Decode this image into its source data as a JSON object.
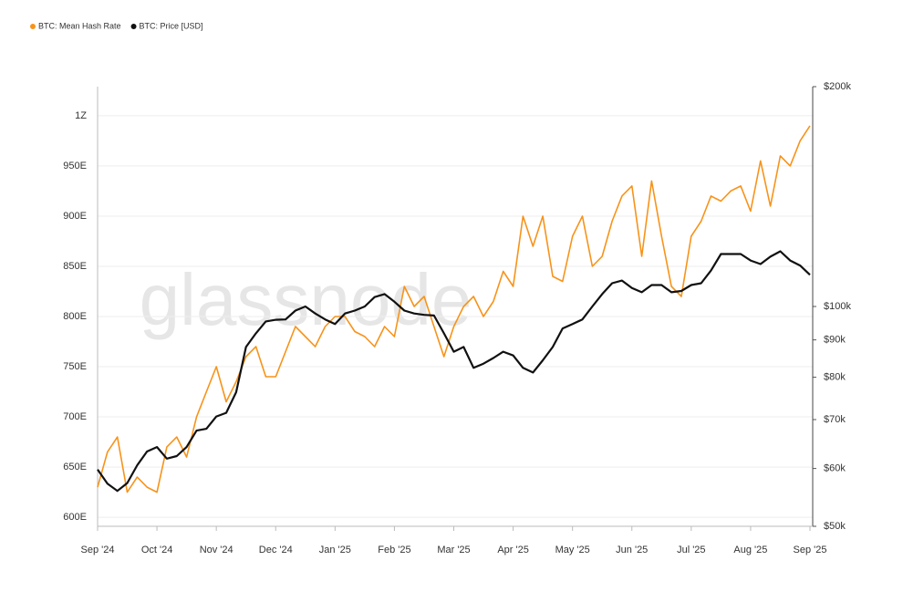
{
  "chart_data": {
    "type": "line",
    "legend": "top-left",
    "watermark": "glassnode",
    "categories": [
      "Sep '24",
      null,
      null,
      null,
      null,
      null,
      "Oct '24",
      null,
      null,
      null,
      null,
      null,
      "Nov '24",
      null,
      null,
      null,
      null,
      null,
      "Dec '24",
      null,
      null,
      null,
      null,
      null,
      "Jan '25",
      null,
      null,
      null,
      null,
      null,
      "Feb '25",
      null,
      null,
      null,
      null,
      null,
      "Mar '25",
      null,
      null,
      null,
      null,
      null,
      "Apr '25",
      null,
      null,
      null,
      null,
      null,
      "May '25",
      null,
      null,
      null,
      null,
      null,
      "Jun '25",
      null,
      null,
      null,
      null,
      null,
      "Jul '25",
      null,
      null,
      null,
      null,
      null,
      "Aug '25",
      null,
      null,
      null,
      null,
      null,
      "Sep '25"
    ],
    "series": [
      {
        "name": "BTC: Mean Hash Rate",
        "color": "#f7931a",
        "axis": "y",
        "values": [
          630,
          665,
          680,
          625,
          640,
          630,
          625,
          670,
          680,
          660,
          700,
          725,
          750,
          715,
          735,
          760,
          770,
          740,
          740,
          765,
          790,
          780,
          770,
          790,
          800,
          800,
          785,
          780,
          770,
          790,
          780,
          830,
          810,
          820,
          790,
          760,
          790,
          810,
          820,
          800,
          815,
          845,
          830,
          900,
          870,
          900,
          840,
          835,
          880,
          900,
          850,
          860,
          895,
          920,
          930,
          860,
          935,
          880,
          830,
          820,
          880,
          895,
          920,
          915,
          925,
          930,
          905,
          955,
          910,
          960,
          950,
          975,
          990
        ]
      },
      {
        "name": "BTC: Price [USD]",
        "color": "#111111",
        "axis": "y2",
        "values": [
          59800,
          57200,
          55900,
          57300,
          60600,
          63300,
          64200,
          61900,
          62400,
          64200,
          67600,
          68000,
          70700,
          71500,
          76300,
          88000,
          91900,
          95400,
          95900,
          96000,
          98700,
          100000,
          97800,
          96000,
          94600,
          97800,
          98700,
          100000,
          103000,
          104000,
          101500,
          98700,
          97800,
          97400,
          97200,
          91900,
          86700,
          88000,
          82400,
          83500,
          85000,
          86700,
          85700,
          82400,
          81200,
          84400,
          88000,
          93300,
          94600,
          96000,
          100000,
          104000,
          107600,
          108500,
          106000,
          104600,
          107000,
          107000,
          104600,
          105000,
          107000,
          107600,
          112000,
          118000,
          118000,
          118000,
          115600,
          114300,
          117000,
          119000,
          115600,
          113800,
          110500
        ]
      }
    ],
    "ylim": [
      591,
      1029
    ],
    "yticks": [
      {
        "value": 600,
        "label": "600E"
      },
      {
        "value": 650,
        "label": "650E"
      },
      {
        "value": 700,
        "label": "700E"
      },
      {
        "value": 750,
        "label": "750E"
      },
      {
        "value": 800,
        "label": "800E"
      },
      {
        "value": 850,
        "label": "850E"
      },
      {
        "value": 900,
        "label": "900E"
      },
      {
        "value": 950,
        "label": "950E"
      },
      {
        "value": 1000,
        "label": "1Z"
      }
    ],
    "y2lim": [
      50000,
      200000
    ],
    "y2log": true,
    "y2ticks": [
      {
        "value": 50000,
        "label": "$50k"
      },
      {
        "value": 60000,
        "label": "$60k"
      },
      {
        "value": 70000,
        "label": "$70k"
      },
      {
        "value": 80000,
        "label": "$80k"
      },
      {
        "value": 90000,
        "label": "$90k"
      },
      {
        "value": 100000,
        "label": "$100k"
      },
      {
        "value": 200000,
        "label": "$200k"
      }
    ],
    "grid": true
  }
}
